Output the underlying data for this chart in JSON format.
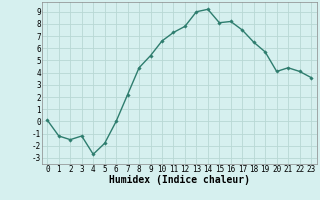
{
  "x": [
    0,
    1,
    2,
    3,
    4,
    5,
    6,
    7,
    8,
    9,
    10,
    11,
    12,
    13,
    14,
    15,
    16,
    17,
    18,
    19,
    20,
    21,
    22,
    23
  ],
  "y": [
    0.1,
    -1.2,
    -1.5,
    -1.2,
    -2.7,
    -1.8,
    0.0,
    2.2,
    4.4,
    5.4,
    6.6,
    7.3,
    7.8,
    9.0,
    9.2,
    8.1,
    8.2,
    7.5,
    6.5,
    5.7,
    4.1,
    4.4,
    4.1,
    3.6
  ],
  "line_color": "#2e7d6e",
  "marker": "D",
  "marker_size": 1.8,
  "bg_color": "#d6f0ef",
  "grid_color": "#b8d8d4",
  "xlabel": "Humidex (Indice chaleur)",
  "xlim": [
    -0.5,
    23.5
  ],
  "ylim": [
    -3.5,
    9.8
  ],
  "xticks": [
    0,
    1,
    2,
    3,
    4,
    5,
    6,
    7,
    8,
    9,
    10,
    11,
    12,
    13,
    14,
    15,
    16,
    17,
    18,
    19,
    20,
    21,
    22,
    23
  ],
  "yticks": [
    -3,
    -2,
    -1,
    0,
    1,
    2,
    3,
    4,
    5,
    6,
    7,
    8,
    9
  ],
  "tick_fontsize": 5.5,
  "label_fontsize": 7,
  "line_width": 1.0
}
